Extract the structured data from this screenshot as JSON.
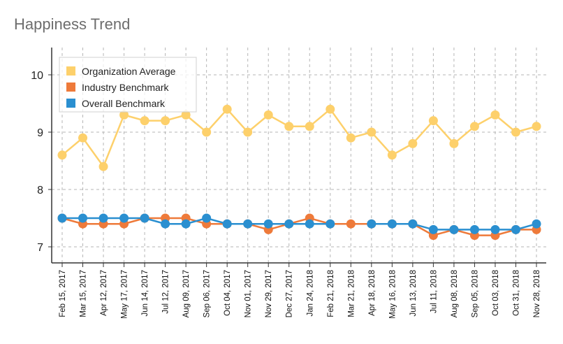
{
  "chart_data": {
    "type": "line",
    "title": "Happiness Trend",
    "xlabel": "",
    "ylabel": "",
    "ylim": [
      6.7,
      10.6
    ],
    "yticks": [
      7,
      8,
      9,
      10
    ],
    "grid": true,
    "legend_position": "top-left",
    "categories": [
      "Feb 15, 2017",
      "Mar 15, 2017",
      "Apr 12, 2017",
      "May 17, 2017",
      "Jun 14, 2017",
      "Jul 12, 2017",
      "Aug 09, 2017",
      "Sep 06, 2017",
      "Oct 04, 2017",
      "Nov 01, 2017",
      "Nov 29, 2017",
      "Dec 27, 2017",
      "Jan 24, 2018",
      "Feb 21, 2018",
      "Mar 21, 2018",
      "Apr 18, 2018",
      "May 16, 2018",
      "Jun 13, 2018",
      "Jul 11, 2018",
      "Aug 08, 2018",
      "Sep 05, 2018",
      "Oct 03, 2018",
      "Oct 31, 2018",
      "Nov 28, 2018"
    ],
    "series": [
      {
        "name": "Organization Average",
        "color": "#fdd06b",
        "values": [
          8.6,
          8.9,
          8.4,
          9.3,
          9.2,
          9.2,
          9.3,
          9.0,
          9.4,
          9.0,
          9.3,
          9.1,
          9.1,
          9.4,
          8.9,
          9.0,
          8.6,
          8.8,
          9.2,
          8.8,
          9.1,
          9.3,
          9.0,
          9.1
        ]
      },
      {
        "name": "Industry Benchmark",
        "color": "#ee7a3a",
        "values": [
          7.5,
          7.4,
          7.4,
          7.4,
          7.5,
          7.5,
          7.5,
          7.4,
          7.4,
          7.4,
          7.3,
          7.4,
          7.5,
          7.4,
          7.4,
          7.4,
          7.4,
          7.4,
          7.2,
          7.3,
          7.2,
          7.2,
          7.3,
          7.3
        ]
      },
      {
        "name": "Overall Benchmark",
        "color": "#2a8fd0",
        "values": [
          7.5,
          7.5,
          7.5,
          7.5,
          7.5,
          7.4,
          7.4,
          7.5,
          7.4,
          7.4,
          7.4,
          7.4,
          7.4,
          7.4,
          null,
          7.4,
          7.4,
          7.4,
          7.3,
          7.3,
          7.3,
          7.3,
          7.3,
          7.4
        ]
      }
    ]
  }
}
